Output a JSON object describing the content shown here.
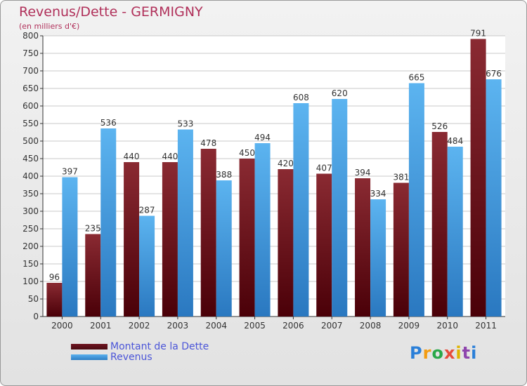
{
  "chart_data": {
    "type": "bar",
    "title": "Revenus/Dette - GERMIGNY",
    "subtitle": "(en milliers d'€)",
    "categories": [
      "2000",
      "2001",
      "2002",
      "2003",
      "2004",
      "2005",
      "2006",
      "2007",
      "2008",
      "2009",
      "2010",
      "2011"
    ],
    "series": [
      {
        "name": "Montant de la Dette",
        "color": "#6e1420",
        "values": [
          96,
          235,
          440,
          440,
          478,
          450,
          420,
          407,
          394,
          381,
          526,
          791
        ]
      },
      {
        "name": "Revenus",
        "color": "#4aa0e2",
        "values": [
          397,
          536,
          287,
          533,
          388,
          494,
          608,
          620,
          334,
          665,
          484,
          676
        ]
      }
    ],
    "ylim": [
      0,
      800
    ],
    "yticks": [
      0,
      50,
      100,
      150,
      200,
      250,
      300,
      350,
      400,
      450,
      500,
      550,
      600,
      650,
      700,
      750,
      800
    ],
    "grid": true,
    "legend": "bottom-left"
  },
  "logo": {
    "letters": [
      "P",
      "r",
      "o",
      "x",
      "i",
      "t",
      "i"
    ]
  }
}
